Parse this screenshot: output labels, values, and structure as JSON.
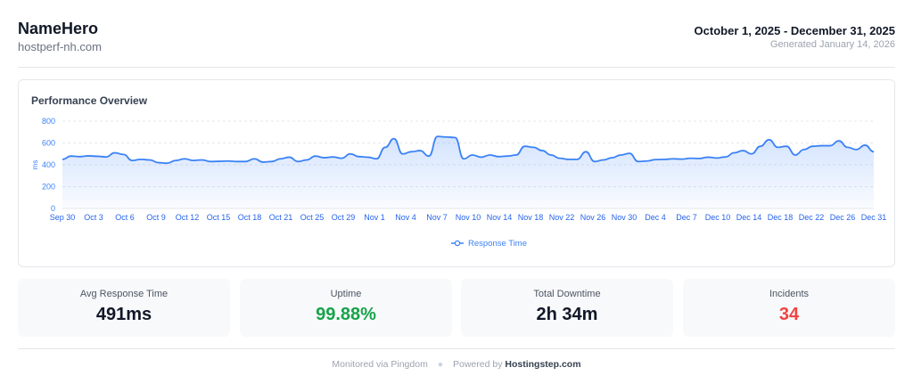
{
  "header": {
    "site_name": "NameHero",
    "host": "hostperf-nh.com",
    "date_range": "October 1, 2025 - December 31, 2025",
    "generated": "Generated January 14, 2026"
  },
  "chart_card": {
    "title": "Performance Overview"
  },
  "chart_data": {
    "type": "line",
    "title": "Performance Overview",
    "xlabel": "",
    "ylabel": "ms",
    "ylim": [
      0,
      800
    ],
    "yticks": [
      0,
      200,
      400,
      600,
      800
    ],
    "grid": true,
    "legend": "bottom-center",
    "xticks": [
      "Sep 30",
      "Oct 3",
      "Oct 6",
      "Oct 9",
      "Oct 12",
      "Oct 15",
      "Oct 18",
      "Oct 21",
      "Oct 25",
      "Oct 29",
      "Nov 1",
      "Nov 4",
      "Nov 7",
      "Nov 10",
      "Nov 14",
      "Nov 18",
      "Nov 22",
      "Nov 26",
      "Nov 30",
      "Dec 4",
      "Dec 7",
      "Dec 10",
      "Dec 14",
      "Dec 18",
      "Dec 22",
      "Dec 26",
      "Dec 31"
    ],
    "series": [
      {
        "name": "Response Time",
        "color": "#3b82f6",
        "values": [
          450,
          480,
          475,
          482,
          478,
          472,
          510,
          495,
          440,
          450,
          445,
          420,
          415,
          440,
          455,
          440,
          445,
          430,
          432,
          435,
          430,
          430,
          455,
          425,
          430,
          455,
          470,
          430,
          445,
          480,
          465,
          472,
          460,
          500,
          475,
          470,
          455,
          560,
          640,
          500,
          520,
          530,
          480,
          660,
          655,
          650,
          455,
          490,
          470,
          490,
          475,
          480,
          490,
          570,
          560,
          530,
          490,
          460,
          450,
          450,
          520,
          430,
          445,
          465,
          490,
          505,
          430,
          435,
          448,
          450,
          455,
          452,
          460,
          458,
          470,
          462,
          472,
          510,
          530,
          500,
          570,
          630,
          560,
          570,
          490,
          540,
          570,
          575,
          575,
          620,
          560,
          540,
          580,
          520
        ]
      }
    ]
  },
  "stats": [
    {
      "label": "Avg Response Time",
      "value": "491ms",
      "color": "#111827"
    },
    {
      "label": "Uptime",
      "value": "99.88%",
      "color": "#16a34a"
    },
    {
      "label": "Total Downtime",
      "value": "2h 34m",
      "color": "#111827"
    },
    {
      "label": "Incidents",
      "value": "34",
      "color": "#ef4444"
    }
  ],
  "footer": {
    "monitored": "Monitored via Pingdom",
    "powered_prefix": "Powered by",
    "brand": "Hostingstep.com"
  }
}
